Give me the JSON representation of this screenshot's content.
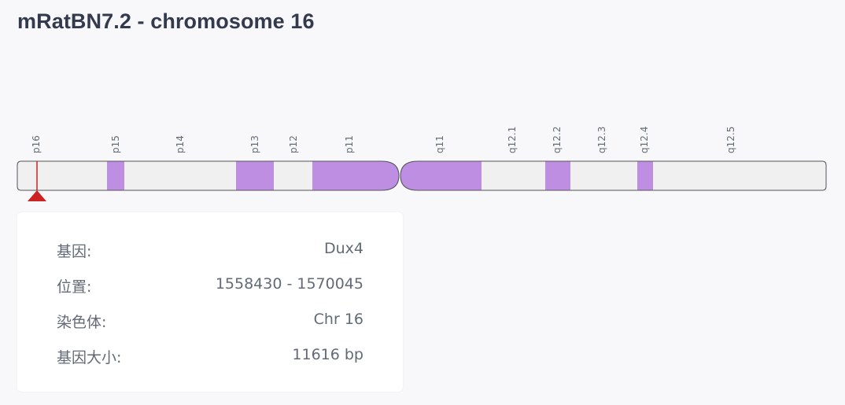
{
  "page": {
    "title": "mRatBN7.2 - chromosome 16"
  },
  "chromosome": {
    "p_arm": {
      "bands": [
        {
          "label": "p16",
          "stain": "gneg"
        },
        {
          "label": "p15",
          "stain": "gpos"
        },
        {
          "label": "p14",
          "stain": "gneg"
        },
        {
          "label": "p13",
          "stain": "gpos"
        },
        {
          "label": "p12",
          "stain": "gneg"
        },
        {
          "label": "p11",
          "stain": "gpos"
        }
      ]
    },
    "q_arm": {
      "bands": [
        {
          "label": "q11",
          "stain": "gpos"
        },
        {
          "label": "q12.1",
          "stain": "gneg"
        },
        {
          "label": "q12.2",
          "stain": "gpos"
        },
        {
          "label": "q12.3",
          "stain": "gneg"
        },
        {
          "label": "q12.4",
          "stain": "gpos"
        },
        {
          "label": "q12.5",
          "stain": "gneg"
        }
      ]
    },
    "colors": {
      "gneg": "#f0f0f0",
      "gpos": "#be8ee2",
      "outline": "#555555",
      "marker": "#cc2222"
    }
  },
  "gene_info": {
    "rows": [
      {
        "label": "基因:",
        "value": "Dux4"
      },
      {
        "label": "位置:",
        "value": "1558430 - 1570045"
      },
      {
        "label": "染色体:",
        "value": "Chr 16"
      },
      {
        "label": "基因大小:",
        "value": "11616 bp"
      }
    ]
  }
}
